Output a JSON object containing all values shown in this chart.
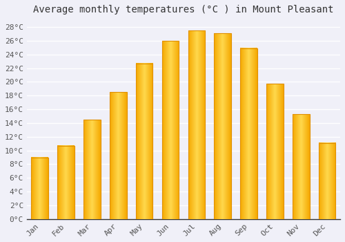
{
  "title": "Average monthly temperatures (°C ) in Mount Pleasant",
  "months": [
    "Jan",
    "Feb",
    "Mar",
    "Apr",
    "May",
    "Jun",
    "Jul",
    "Aug",
    "Sep",
    "Oct",
    "Nov",
    "Dec"
  ],
  "values": [
    9.0,
    10.7,
    14.5,
    18.5,
    22.7,
    26.0,
    27.5,
    27.1,
    24.9,
    19.7,
    15.3,
    11.1
  ],
  "bar_color_left": "#F5A800",
  "bar_color_center": "#FFD84D",
  "bar_color_right": "#F5A800",
  "bar_border_color": "#E09000",
  "ylim": [
    0,
    29
  ],
  "ytick_step": 2,
  "background_color": "#F0F0F8",
  "plot_bg_color": "#F0F0F8",
  "grid_color": "#FFFFFF",
  "title_fontsize": 10,
  "tick_fontsize": 8,
  "tick_font_family": "monospace",
  "title_color": "#333333",
  "tick_color": "#555555"
}
